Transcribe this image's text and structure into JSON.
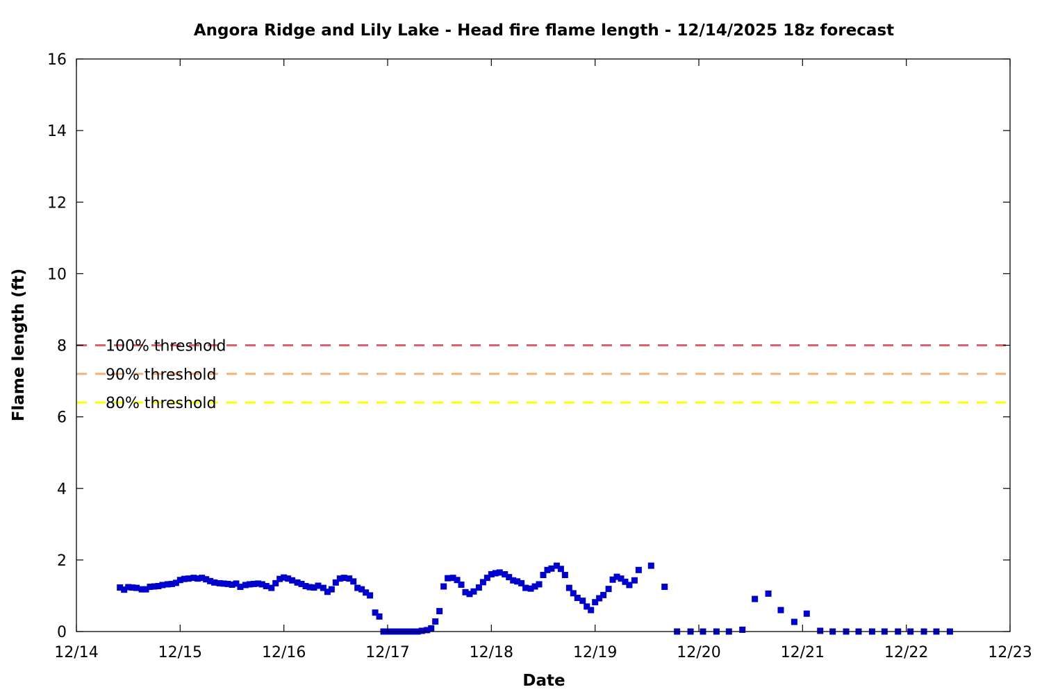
{
  "chart_data": {
    "type": "scatter",
    "title": "Angora Ridge and Lily Lake - Head fire flame length - 12/14/2025 18z forecast",
    "xlabel": "Date",
    "ylabel": "Flame length (ft)",
    "x_ticks": [
      "12/14",
      "12/15",
      "12/16",
      "12/17",
      "12/18",
      "12/19",
      "12/20",
      "12/21",
      "12/22",
      "12/23"
    ],
    "y_ticks": [
      "0",
      "2",
      "4",
      "6",
      "8",
      "10",
      "12",
      "14",
      "16"
    ],
    "xlim_days": [
      0,
      9
    ],
    "ylim": [
      0,
      16
    ],
    "grid": false,
    "thresholds": [
      {
        "label": "100% threshold",
        "value": 8.0,
        "color": "#e06070"
      },
      {
        "label": "90% threshold",
        "value": 7.2,
        "color": "#f4b27a"
      },
      {
        "label": "80% threshold",
        "value": 6.4,
        "color": "#ffff00"
      }
    ],
    "series": [
      {
        "marker_color": "#0000cc",
        "x_days": [
          0.42,
          0.46,
          0.5,
          0.54,
          0.58,
          0.63,
          0.67,
          0.71,
          0.75,
          0.79,
          0.83,
          0.88,
          0.92,
          0.96,
          1.0,
          1.04,
          1.08,
          1.13,
          1.17,
          1.21,
          1.25,
          1.29,
          1.33,
          1.38,
          1.42,
          1.46,
          1.5,
          1.54,
          1.58,
          1.63,
          1.67,
          1.71,
          1.75,
          1.79,
          1.83,
          1.88,
          1.92,
          1.96,
          2.0,
          2.04,
          2.08,
          2.13,
          2.17,
          2.21,
          2.25,
          2.29,
          2.33,
          2.38,
          2.42,
          2.46,
          2.5,
          2.54,
          2.58,
          2.63,
          2.67,
          2.71,
          2.75,
          2.79,
          2.83,
          2.88,
          2.92,
          2.96,
          3.0,
          3.04,
          3.08,
          3.13,
          3.17,
          3.21,
          3.25,
          3.29,
          3.33,
          3.38,
          3.42,
          3.46,
          3.5,
          3.54,
          3.58,
          3.63,
          3.67,
          3.71,
          3.75,
          3.79,
          3.83,
          3.88,
          3.92,
          3.96,
          4.0,
          4.04,
          4.08,
          4.13,
          4.17,
          4.21,
          4.25,
          4.29,
          4.33,
          4.38,
          4.42,
          4.46,
          4.5,
          4.54,
          4.58,
          4.63,
          4.67,
          4.71,
          4.75,
          4.79,
          4.83,
          4.88,
          4.92,
          4.96,
          5.0,
          5.04,
          5.08,
          5.13,
          5.17,
          5.21,
          5.25,
          5.29,
          5.33,
          5.38,
          5.42,
          5.54,
          5.67,
          5.79,
          5.92,
          6.04,
          6.17,
          6.29,
          6.42,
          6.54,
          6.67,
          6.79,
          6.92,
          7.04,
          7.17,
          7.29,
          7.42,
          7.54,
          7.67,
          7.79,
          7.92,
          8.04,
          8.17,
          8.29,
          8.42
        ],
        "y": [
          1.23,
          1.17,
          1.24,
          1.23,
          1.22,
          1.18,
          1.18,
          1.25,
          1.26,
          1.27,
          1.3,
          1.32,
          1.33,
          1.36,
          1.44,
          1.47,
          1.48,
          1.5,
          1.48,
          1.5,
          1.46,
          1.41,
          1.37,
          1.35,
          1.34,
          1.33,
          1.31,
          1.34,
          1.25,
          1.3,
          1.32,
          1.33,
          1.34,
          1.32,
          1.27,
          1.22,
          1.35,
          1.47,
          1.51,
          1.48,
          1.43,
          1.37,
          1.33,
          1.27,
          1.24,
          1.23,
          1.28,
          1.22,
          1.11,
          1.18,
          1.37,
          1.48,
          1.5,
          1.48,
          1.4,
          1.22,
          1.18,
          1.09,
          1.01,
          0.53,
          0.42,
          0.0,
          0.0,
          0.0,
          0.0,
          0.0,
          0.0,
          0.0,
          0.0,
          0.0,
          0.02,
          0.04,
          0.09,
          0.28,
          0.57,
          1.26,
          1.49,
          1.5,
          1.44,
          1.31,
          1.1,
          1.05,
          1.12,
          1.23,
          1.38,
          1.5,
          1.6,
          1.63,
          1.65,
          1.6,
          1.52,
          1.43,
          1.4,
          1.35,
          1.22,
          1.2,
          1.26,
          1.32,
          1.58,
          1.72,
          1.76,
          1.84,
          1.75,
          1.58,
          1.22,
          1.07,
          0.94,
          0.86,
          0.7,
          0.6,
          0.82,
          0.93,
          1.02,
          1.19,
          1.45,
          1.53,
          1.48,
          1.39,
          1.3,
          1.43,
          1.72,
          1.84,
          1.25,
          0.0,
          0.0,
          0.0,
          0.0,
          0.0,
          0.05,
          0.91,
          1.06,
          0.6,
          0.27,
          0.5,
          0.02,
          0.0,
          0.0,
          0.0,
          0.0,
          0.0,
          0.0,
          0.0,
          0.0,
          0.0,
          0.0
        ]
      }
    ]
  }
}
